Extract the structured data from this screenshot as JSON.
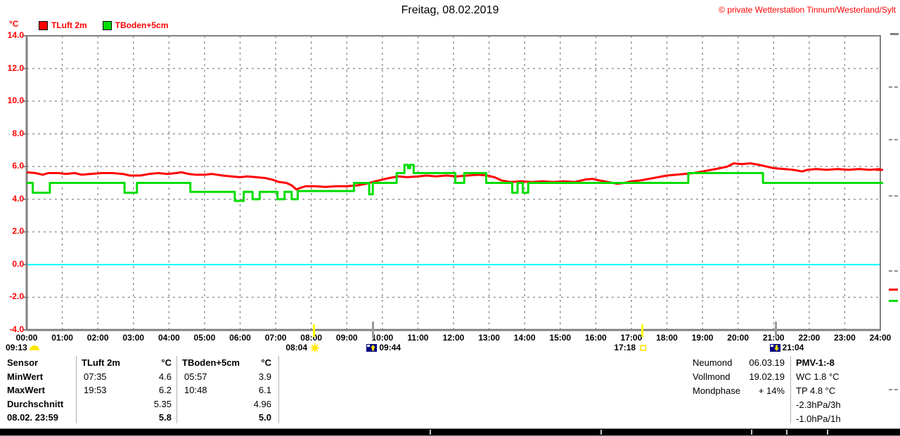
{
  "header": {
    "title": "Freitag, 08.02.2019",
    "copyright": "© private Wetterstation Tinnum/Westerland/Sylt"
  },
  "legend": {
    "unit_label": "°C",
    "items": [
      {
        "label": "TLuft 2m",
        "color": "#ff0000"
      },
      {
        "label": "TBoden+5cm",
        "color": "#00dd00"
      }
    ]
  },
  "chart_data": {
    "type": "line",
    "title": "Freitag, 08.02.2019",
    "xlabel": "",
    "ylabel": "°C",
    "ylim": [
      -4.0,
      14.0
    ],
    "xlim_hours": [
      0,
      24
    ],
    "grid": true,
    "zero_line_color": "#00ffff",
    "y_ticks": [
      "14.0",
      "12.0",
      "10.0",
      "8.0",
      "6.0",
      "4.0",
      "2.0",
      "0.0",
      "-2.0",
      "-4.0"
    ],
    "x_ticks": [
      "00:00",
      "01:00",
      "02:00",
      "03:00",
      "04:00",
      "05:00",
      "06:00",
      "07:00",
      "08:00",
      "09:00",
      "10:00",
      "11:00",
      "12:00",
      "13:00",
      "14:00",
      "15:00",
      "16:00",
      "17:00",
      "18:00",
      "19:00",
      "20:00",
      "21:00",
      "22:00",
      "23:00",
      "24:00"
    ],
    "series": [
      {
        "id": "tluft-2m",
        "name": "TLuft 2m",
        "unit": "°C",
        "color": "#ff0000",
        "points_hour_celsius": [
          [
            0,
            5.65
          ],
          [
            0.25,
            5.6
          ],
          [
            0.45,
            5.5
          ],
          [
            0.6,
            5.6
          ],
          [
            0.9,
            5.6
          ],
          [
            1.1,
            5.55
          ],
          [
            1.35,
            5.6
          ],
          [
            1.55,
            5.5
          ],
          [
            1.8,
            5.55
          ],
          [
            2.1,
            5.6
          ],
          [
            2.4,
            5.6
          ],
          [
            2.7,
            5.55
          ],
          [
            2.9,
            5.45
          ],
          [
            3.2,
            5.45
          ],
          [
            3.45,
            5.55
          ],
          [
            3.7,
            5.6
          ],
          [
            3.95,
            5.55
          ],
          [
            4.2,
            5.6
          ],
          [
            4.35,
            5.65
          ],
          [
            4.55,
            5.55
          ],
          [
            4.75,
            5.5
          ],
          [
            5.0,
            5.5
          ],
          [
            5.2,
            5.55
          ],
          [
            5.5,
            5.45
          ],
          [
            5.75,
            5.4
          ],
          [
            6.0,
            5.35
          ],
          [
            6.2,
            5.4
          ],
          [
            6.45,
            5.35
          ],
          [
            6.7,
            5.3
          ],
          [
            6.9,
            5.2
          ],
          [
            7.1,
            5.05
          ],
          [
            7.3,
            5.0
          ],
          [
            7.45,
            4.85
          ],
          [
            7.58,
            4.6
          ],
          [
            7.7,
            4.7
          ],
          [
            7.85,
            4.8
          ],
          [
            8.1,
            4.8
          ],
          [
            8.4,
            4.75
          ],
          [
            8.7,
            4.8
          ],
          [
            9.0,
            4.8
          ],
          [
            9.3,
            4.85
          ],
          [
            9.55,
            4.95
          ],
          [
            9.8,
            5.1
          ],
          [
            10.0,
            5.2
          ],
          [
            10.2,
            5.3
          ],
          [
            10.45,
            5.4
          ],
          [
            10.7,
            5.35
          ],
          [
            11.0,
            5.4
          ],
          [
            11.25,
            5.45
          ],
          [
            11.5,
            5.4
          ],
          [
            11.8,
            5.45
          ],
          [
            12.1,
            5.4
          ],
          [
            12.4,
            5.45
          ],
          [
            12.7,
            5.5
          ],
          [
            12.95,
            5.45
          ],
          [
            13.15,
            5.35
          ],
          [
            13.35,
            5.15
          ],
          [
            13.6,
            5.05
          ],
          [
            13.9,
            5.1
          ],
          [
            14.2,
            5.05
          ],
          [
            14.5,
            5.1
          ],
          [
            14.8,
            5.05
          ],
          [
            15.1,
            5.1
          ],
          [
            15.4,
            5.05
          ],
          [
            15.7,
            5.2
          ],
          [
            15.9,
            5.25
          ],
          [
            16.1,
            5.15
          ],
          [
            16.35,
            5.05
          ],
          [
            16.6,
            4.95
          ],
          [
            16.8,
            5.0
          ],
          [
            17.0,
            5.1
          ],
          [
            17.25,
            5.15
          ],
          [
            17.5,
            5.25
          ],
          [
            17.75,
            5.35
          ],
          [
            18.0,
            5.45
          ],
          [
            18.25,
            5.5
          ],
          [
            18.5,
            5.55
          ],
          [
            18.75,
            5.6
          ],
          [
            19.0,
            5.7
          ],
          [
            19.25,
            5.8
          ],
          [
            19.5,
            5.9
          ],
          [
            19.7,
            6.0
          ],
          [
            19.88,
            6.2
          ],
          [
            20.1,
            6.15
          ],
          [
            20.35,
            6.2
          ],
          [
            20.6,
            6.1
          ],
          [
            20.8,
            6.0
          ],
          [
            21.0,
            5.9
          ],
          [
            21.3,
            5.85
          ],
          [
            21.55,
            5.8
          ],
          [
            21.8,
            5.7
          ],
          [
            21.95,
            5.8
          ],
          [
            22.2,
            5.85
          ],
          [
            22.5,
            5.8
          ],
          [
            22.8,
            5.85
          ],
          [
            23.1,
            5.8
          ],
          [
            23.4,
            5.85
          ],
          [
            23.7,
            5.8
          ],
          [
            24,
            5.85
          ]
        ]
      },
      {
        "id": "tboden-5cm",
        "name": "TBoden+5cm",
        "unit": "°C",
        "color": "#00dd00",
        "points_hour_celsius": [
          [
            0,
            5.0
          ],
          [
            0.17,
            5.0
          ],
          [
            0.17,
            4.4
          ],
          [
            0.65,
            4.4
          ],
          [
            0.65,
            5.0
          ],
          [
            2.75,
            5.0
          ],
          [
            2.75,
            4.4
          ],
          [
            3.1,
            4.4
          ],
          [
            3.1,
            5.0
          ],
          [
            4.6,
            5.0
          ],
          [
            4.6,
            4.45
          ],
          [
            5.85,
            4.45
          ],
          [
            5.85,
            3.9
          ],
          [
            6.1,
            3.9
          ],
          [
            6.1,
            4.45
          ],
          [
            6.35,
            4.45
          ],
          [
            6.35,
            4.0
          ],
          [
            6.55,
            4.0
          ],
          [
            6.55,
            4.45
          ],
          [
            7.05,
            4.45
          ],
          [
            7.05,
            4.0
          ],
          [
            7.25,
            4.0
          ],
          [
            7.25,
            4.45
          ],
          [
            7.45,
            4.45
          ],
          [
            7.45,
            4.0
          ],
          [
            7.62,
            4.0
          ],
          [
            7.62,
            4.5
          ],
          [
            9.2,
            4.5
          ],
          [
            9.2,
            5.0
          ],
          [
            9.63,
            5.0
          ],
          [
            9.63,
            4.3
          ],
          [
            9.73,
            4.3
          ],
          [
            9.73,
            5.0
          ],
          [
            10.4,
            5.0
          ],
          [
            10.4,
            5.6
          ],
          [
            10.62,
            5.6
          ],
          [
            10.62,
            6.1
          ],
          [
            10.72,
            6.1
          ],
          [
            10.72,
            5.9
          ],
          [
            10.78,
            5.9
          ],
          [
            10.78,
            6.1
          ],
          [
            10.88,
            6.1
          ],
          [
            10.88,
            5.6
          ],
          [
            12.05,
            5.6
          ],
          [
            12.05,
            5.0
          ],
          [
            12.3,
            5.0
          ],
          [
            12.3,
            5.6
          ],
          [
            12.92,
            5.6
          ],
          [
            12.92,
            5.0
          ],
          [
            13.65,
            5.0
          ],
          [
            13.65,
            4.4
          ],
          [
            13.8,
            4.4
          ],
          [
            13.8,
            5.0
          ],
          [
            13.95,
            5.0
          ],
          [
            13.95,
            4.4
          ],
          [
            14.1,
            4.4
          ],
          [
            14.1,
            5.0
          ],
          [
            18.6,
            5.0
          ],
          [
            18.6,
            5.6
          ],
          [
            20.7,
            5.6
          ],
          [
            20.7,
            5.0
          ],
          [
            24,
            5.0
          ]
        ]
      }
    ],
    "right_axis_value_marks": [
      {
        "color": "#ff0000",
        "value": 5.8
      },
      {
        "color": "#00dd00",
        "value": 5.0
      }
    ]
  },
  "axis_markers": {
    "sunshine_duration": {
      "time": "09:13",
      "icon": "half-sun"
    },
    "events": [
      {
        "name": "sunrise",
        "time": "08:04",
        "icon": "sun-filled",
        "side": "left",
        "tick_color": "#ffff00"
      },
      {
        "name": "moonrise",
        "time": "09:44",
        "icon": "moon-arrow-up",
        "side": "right",
        "tick_color": "#9a9a9a"
      },
      {
        "name": "sunset",
        "time": "17:18",
        "icon": "sun-outline",
        "side": "left",
        "tick_color": "#ffff00"
      },
      {
        "name": "moonset",
        "time": "21:04",
        "icon": "moon-arrow-down",
        "side": "right",
        "tick_color": "#9a9a9a"
      }
    ]
  },
  "stats_table": {
    "header": {
      "label": "Sensor",
      "sensor1": "TLuft 2m",
      "unit1": "°C",
      "sensor2": "TBoden+5cm",
      "unit2": "°C"
    },
    "rows": [
      {
        "label": "MinWert",
        "s1_time": "07:35",
        "s1_value": "4.6",
        "s2_time": "05:57",
        "s2_value": "3.9"
      },
      {
        "label": "MaxWert",
        "s1_time": "19:53",
        "s1_value": "6.2",
        "s2_time": "10:48",
        "s2_value": "6.1"
      },
      {
        "label": "Durchschnitt",
        "s1_time": "",
        "s1_value": "5.35",
        "s2_time": "",
        "s2_value": "4.96"
      },
      {
        "label": "08.02. 23:59",
        "s1_time": "",
        "s1_value": "5.8",
        "s2_time": "",
        "s2_value": "5.0"
      }
    ]
  },
  "astro": {
    "rows": [
      {
        "label": "Neumond",
        "value": "06.03.19"
      },
      {
        "label": "Vollmond",
        "value": "19.02.19"
      },
      {
        "label": "Mondphase",
        "value": "+ 14%"
      }
    ]
  },
  "readings": {
    "lines": [
      "PMV-1:-8",
      "WC 1.8 °C",
      "TP 4.8 °C",
      "-2.3hPa/3h",
      "-1.0hPa/1h"
    ]
  }
}
